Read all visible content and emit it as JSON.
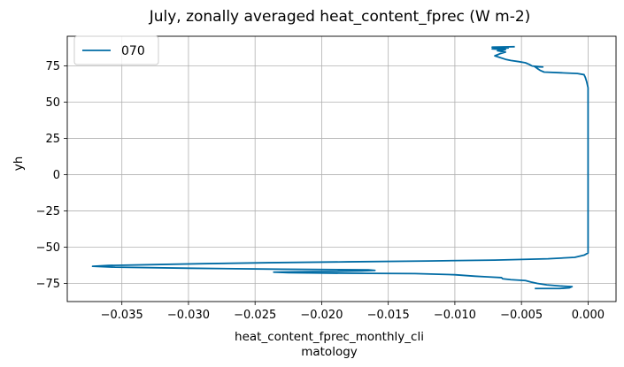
{
  "chart_data": {
    "type": "line",
    "title": "July, zonally averaged heat_content_fprec (W m-2)",
    "xlabel_lines": [
      "heat_content_fprec_monthly_cli",
      "matology"
    ],
    "ylabel": "yh",
    "xlim": [
      -0.0391,
      0.0021
    ],
    "ylim": [
      -87.5,
      95.5
    ],
    "xticks": [
      -0.035,
      -0.03,
      -0.025,
      -0.02,
      -0.015,
      -0.01,
      -0.005,
      0.0
    ],
    "xtick_labels": [
      "−0.035",
      "−0.030",
      "−0.025",
      "−0.020",
      "−0.015",
      "−0.010",
      "−0.005",
      "0.000"
    ],
    "yticks": [
      -75,
      -50,
      -25,
      0,
      25,
      50,
      75
    ],
    "ytick_labels": [
      "−75",
      "−50",
      "−25",
      "0",
      "25",
      "50",
      "75"
    ],
    "grid": true,
    "legend_position": "upper-left",
    "series": [
      {
        "name": "070",
        "color": "#006ba4",
        "points": [
          [
            -0.004,
            -78.5
          ],
          [
            -0.0021,
            -78.5
          ],
          [
            -0.0014,
            -78.0
          ],
          [
            -0.0012,
            -77.2
          ],
          [
            -0.002,
            -76.8
          ],
          [
            -0.0031,
            -76.0
          ],
          [
            -0.0038,
            -75.0
          ],
          [
            -0.0043,
            -74.0
          ],
          [
            -0.0047,
            -73.0
          ],
          [
            -0.0058,
            -72.4
          ],
          [
            -0.0064,
            -71.8
          ],
          [
            -0.0065,
            -71.0
          ],
          [
            -0.0075,
            -70.5
          ],
          [
            -0.0085,
            -70.0
          ],
          [
            -0.01,
            -69.0
          ],
          [
            -0.013,
            -68.2
          ],
          [
            -0.018,
            -68.0
          ],
          [
            -0.0225,
            -67.6
          ],
          [
            -0.0236,
            -67.2
          ],
          [
            -0.022,
            -67.0
          ],
          [
            -0.017,
            -66.4
          ],
          [
            -0.016,
            -66.0
          ],
          [
            -0.0165,
            -65.6
          ],
          [
            -0.023,
            -65.2
          ],
          [
            -0.03,
            -64.5
          ],
          [
            -0.0355,
            -63.8
          ],
          [
            -0.0372,
            -63.2
          ],
          [
            -0.036,
            -62.6
          ],
          [
            -0.0325,
            -62.0
          ],
          [
            -0.029,
            -61.4
          ],
          [
            -0.024,
            -60.7
          ],
          [
            -0.018,
            -60.1
          ],
          [
            -0.012,
            -59.5
          ],
          [
            -0.007,
            -58.9
          ],
          [
            -0.003,
            -58.0
          ],
          [
            -0.001,
            -57.0
          ],
          [
            -0.0003,
            -55.5
          ],
          [
            0.0,
            -54.0
          ],
          [
            0.0,
            60.0
          ],
          [
            -0.0001,
            64.0
          ],
          [
            -0.0002,
            67.0
          ],
          [
            -0.0003,
            69.0
          ],
          [
            -0.0008,
            69.8
          ],
          [
            -0.002,
            70.3
          ],
          [
            -0.0033,
            70.8
          ],
          [
            -0.0036,
            72.0
          ],
          [
            -0.0038,
            73.2
          ],
          [
            -0.004,
            74.5
          ],
          [
            -0.0034,
            74.3
          ],
          [
            -0.0042,
            75.0
          ],
          [
            -0.0044,
            76.0
          ],
          [
            -0.0047,
            77.2
          ],
          [
            -0.0052,
            78.0
          ],
          [
            -0.0058,
            78.8
          ],
          [
            -0.0062,
            79.6
          ],
          [
            -0.0066,
            80.8
          ],
          [
            -0.007,
            82.0
          ],
          [
            -0.0066,
            83.5
          ],
          [
            -0.0062,
            84.6
          ],
          [
            -0.0068,
            85.5
          ],
          [
            -0.0062,
            86.3
          ],
          [
            -0.0072,
            86.8
          ],
          [
            -0.006,
            87.4
          ],
          [
            -0.0072,
            88.0
          ],
          [
            -0.0055,
            88.3
          ]
        ]
      }
    ]
  }
}
